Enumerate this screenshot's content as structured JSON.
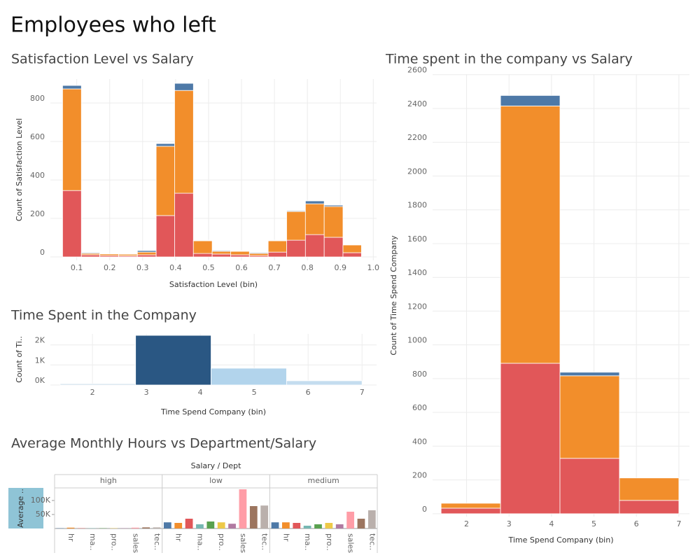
{
  "title": "Employees who left",
  "chart_data": [
    {
      "type": "histogram",
      "title": "Satisfaction Level vs Salary",
      "x_label": "Satisfaction Level (bin)",
      "y_label": "Count of Satisfaction Level",
      "bins": [
        0.057,
        0.114,
        0.17,
        0.227,
        0.284,
        0.341,
        0.397,
        0.454,
        0.511,
        0.567,
        0.624,
        0.681,
        0.737,
        0.794,
        0.851,
        0.908,
        0.964
      ],
      "series": [
        {
          "color": "#e15759",
          "values": [
            345,
            11,
            7,
            6,
            11,
            215,
            331,
            18,
            15,
            11,
            7,
            25,
            87,
            116,
            102,
            22
          ]
        },
        {
          "color": "#f28e2b",
          "values": [
            528,
            7,
            8,
            8,
            14,
            360,
            534,
            66,
            14,
            18,
            11,
            59,
            149,
            160,
            160,
            40
          ]
        },
        {
          "color": "#4e79a7",
          "values": [
            18,
            4,
            0,
            2,
            8,
            14,
            37,
            3,
            4,
            2,
            4,
            3,
            4,
            15,
            7,
            0
          ]
        }
      ],
      "xlim": [
        0.02,
        1.01
      ],
      "xticks": [
        0.1,
        0.2,
        0.3,
        0.4,
        0.5,
        0.6,
        0.7,
        0.8,
        0.9,
        {
          "value": 1,
          "label": "1.0"
        }
      ],
      "ylim": [
        -18,
        924
      ],
      "yticks": [
        0,
        200,
        400,
        600,
        800
      ],
      "grid": true
    },
    {
      "type": "histogram",
      "title": "Time Spent in the Company",
      "x_label": "Time Spend Company (bin)",
      "y_label": "Count of Ti..",
      "bins": [
        1.4,
        2.8,
        4.2,
        5.6,
        7.0
      ],
      "values": [
        62,
        2477,
        838,
        212
      ],
      "colors": [
        "#c8dcea",
        "#2a5783",
        "#b2d4ec",
        "#c4ddef"
      ],
      "xlim": [
        1.22,
        7.27
      ],
      "xticks": [
        2,
        3,
        4,
        5,
        6,
        7
      ],
      "ylim": [
        0,
        2550
      ],
      "yticks": [
        {
          "value": 0,
          "label": "0K"
        },
        {
          "value": 1000,
          "label": "1K"
        },
        {
          "value": 2000,
          "label": "2K"
        }
      ],
      "grid": true
    },
    {
      "type": "histogram",
      "title": "Time spent in the company vs Salary",
      "x_label": "Time Spend Company (bin)",
      "y_label": "Count of Time Spend Company",
      "bins": [
        1.4,
        2.8,
        4.2,
        5.6,
        7.0
      ],
      "series": [
        {
          "color": "#e15759",
          "values": [
            33,
            891,
            328,
            79
          ]
        },
        {
          "color": "#f28e2b",
          "values": [
            29,
            1524,
            489,
            133
          ]
        },
        {
          "color": "#4e79a7",
          "values": [
            0,
            62,
            21,
            0
          ]
        }
      ],
      "xlim": [
        1.2,
        7.25
      ],
      "xticks": [
        2,
        3,
        4,
        5,
        6,
        7
      ],
      "ylim": [
        -17,
        2603
      ],
      "yticks": [
        0,
        200,
        400,
        600,
        800,
        1000,
        1200,
        1400,
        1600,
        1800,
        2000,
        2200,
        2400,
        2600
      ],
      "grid": true
    },
    {
      "type": "panel-bar",
      "title": "Average Monthly Hours vs Department/Salary",
      "x_label": "Salary / Dept",
      "y_label": "Average ..",
      "categories": [
        null,
        "hr",
        null,
        "ma..",
        null,
        "pro..",
        null,
        "sales",
        null,
        "tec.."
      ],
      "colors": [
        "#4e79a7",
        "#f28e2b",
        "#e15759",
        "#76b7b2",
        "#59a14f",
        "#edc948",
        "#b07aa1",
        "#ff9da7",
        "#9c755f",
        "#bab0ac"
      ],
      "panels": [
        {
          "name": "high",
          "values": [
            1000,
            3000,
            1000,
            1000,
            1000,
            1000,
            1000,
            3000,
            4000,
            4000
          ]
        },
        {
          "name": "low",
          "values": [
            22000,
            20000,
            35000,
            15000,
            25000,
            22000,
            17000,
            140000,
            80000,
            82000
          ]
        },
        {
          "name": "medium",
          "values": [
            22000,
            22000,
            20000,
            10000,
            15000,
            20000,
            15000,
            60000,
            35000,
            65000
          ]
        }
      ],
      "ylim": [
        0,
        145000
      ],
      "yticks": [
        {
          "value": 50000,
          "label": "50K"
        },
        {
          "value": 100000,
          "label": "100K"
        }
      ]
    }
  ]
}
